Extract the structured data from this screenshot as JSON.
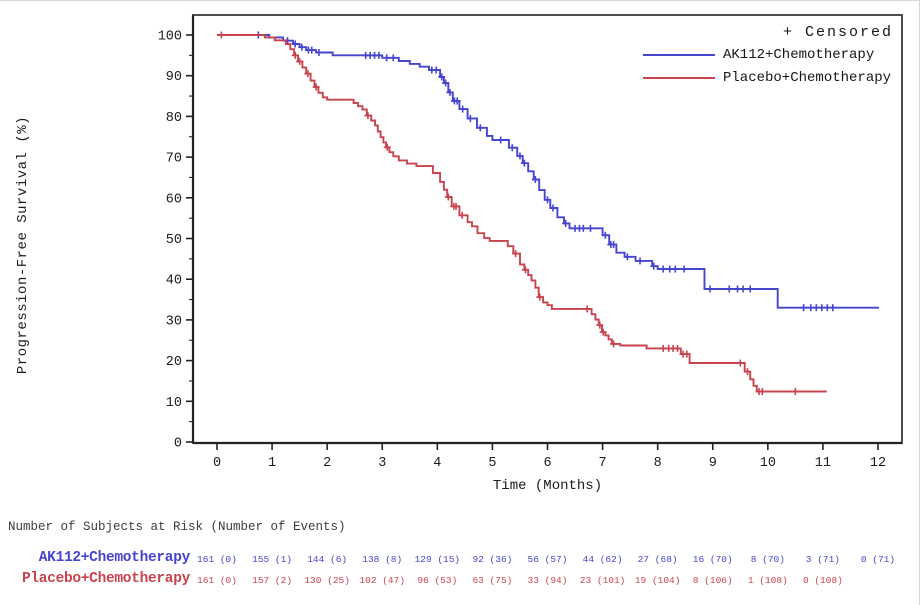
{
  "chart_data": {
    "type": "line",
    "subtype": "kaplan-meier-step",
    "title": "",
    "xlabel": "Time (Months)",
    "ylabel": "Progression-Free Survival (%)",
    "xlim": [
      0,
      12.5
    ],
    "ylim": [
      0,
      100
    ],
    "x_ticks": [
      0,
      1,
      2,
      3,
      4,
      5,
      6,
      7,
      8,
      9,
      10,
      11,
      12
    ],
    "y_ticks": [
      0,
      10,
      20,
      30,
      40,
      50,
      60,
      70,
      80,
      90,
      100
    ],
    "y_minor_ticks": [
      5,
      15,
      25,
      35,
      45,
      55,
      65,
      75,
      85,
      95
    ],
    "grid": false,
    "legend": {
      "position": "top-right",
      "censored_label": "+ Censored"
    },
    "series": [
      {
        "name": "AK112+Chemotherapy",
        "color": "#4545cf",
        "steps": [
          [
            0,
            100
          ],
          [
            0.95,
            99.4
          ],
          [
            1.2,
            98.6
          ],
          [
            1.38,
            97.8
          ],
          [
            1.5,
            97.0
          ],
          [
            1.62,
            96.3
          ],
          [
            1.8,
            95.7
          ],
          [
            2.1,
            95.0
          ],
          [
            3.0,
            94.4
          ],
          [
            3.3,
            93.6
          ],
          [
            3.5,
            92.9
          ],
          [
            3.68,
            92.2
          ],
          [
            3.85,
            91.4
          ],
          [
            4.05,
            89.7
          ],
          [
            4.12,
            88.2
          ],
          [
            4.2,
            85.9
          ],
          [
            4.28,
            83.8
          ],
          [
            4.4,
            81.8
          ],
          [
            4.55,
            79.5
          ],
          [
            4.72,
            77.2
          ],
          [
            4.9,
            75.2
          ],
          [
            5.0,
            74.2
          ],
          [
            5.3,
            72.3
          ],
          [
            5.45,
            70.3
          ],
          [
            5.55,
            68.5
          ],
          [
            5.65,
            66.5
          ],
          [
            5.75,
            64.5
          ],
          [
            5.85,
            61.9
          ],
          [
            5.95,
            59.5
          ],
          [
            6.05,
            57.5
          ],
          [
            6.18,
            55.2
          ],
          [
            6.3,
            53.7
          ],
          [
            6.4,
            52.5
          ],
          [
            7.0,
            50.8
          ],
          [
            7.12,
            48.5
          ],
          [
            7.25,
            46.5
          ],
          [
            7.4,
            45.5
          ],
          [
            7.6,
            44.5
          ],
          [
            7.9,
            43.2
          ],
          [
            8.0,
            42.5
          ],
          [
            8.85,
            37.6
          ],
          [
            10.18,
            33.0
          ],
          [
            12.02,
            33.0
          ]
        ],
        "censors": [
          [
            0.75,
            100
          ],
          [
            1.28,
            98.6
          ],
          [
            1.42,
            97.8
          ],
          [
            1.54,
            97.0
          ],
          [
            1.66,
            96.3
          ],
          [
            1.72,
            96.3
          ],
          [
            1.85,
            95.7
          ],
          [
            2.7,
            95.0
          ],
          [
            2.78,
            95.0
          ],
          [
            2.86,
            95.0
          ],
          [
            2.94,
            95.0
          ],
          [
            3.08,
            94.4
          ],
          [
            3.2,
            94.4
          ],
          [
            3.9,
            91.4
          ],
          [
            3.98,
            91.4
          ],
          [
            4.08,
            89.7
          ],
          [
            4.15,
            88.2
          ],
          [
            4.23,
            85.9
          ],
          [
            4.31,
            83.8
          ],
          [
            4.36,
            83.8
          ],
          [
            4.46,
            81.8
          ],
          [
            4.6,
            79.5
          ],
          [
            4.78,
            77.2
          ],
          [
            5.15,
            74.2
          ],
          [
            5.36,
            72.3
          ],
          [
            5.5,
            70.3
          ],
          [
            5.58,
            68.5
          ],
          [
            5.78,
            64.5
          ],
          [
            6.0,
            59.5
          ],
          [
            6.1,
            57.5
          ],
          [
            6.33,
            53.7
          ],
          [
            6.5,
            52.5
          ],
          [
            6.58,
            52.5
          ],
          [
            6.65,
            52.5
          ],
          [
            6.78,
            52.5
          ],
          [
            7.05,
            50.8
          ],
          [
            7.15,
            48.5
          ],
          [
            7.2,
            48.5
          ],
          [
            7.45,
            45.5
          ],
          [
            7.68,
            44.5
          ],
          [
            7.93,
            43.2
          ],
          [
            8.1,
            42.5
          ],
          [
            8.22,
            42.5
          ],
          [
            8.32,
            42.5
          ],
          [
            8.48,
            42.5
          ],
          [
            8.95,
            37.6
          ],
          [
            9.3,
            37.6
          ],
          [
            9.45,
            37.6
          ],
          [
            9.55,
            37.6
          ],
          [
            9.68,
            37.6
          ],
          [
            10.65,
            33.0
          ],
          [
            10.78,
            33.0
          ],
          [
            10.88,
            33.0
          ],
          [
            10.98,
            33.0
          ],
          [
            11.08,
            33.0
          ],
          [
            11.18,
            33.0
          ]
        ]
      },
      {
        "name": "Placebo+Chemotherapy",
        "color": "#c8434e",
        "steps": [
          [
            0,
            100
          ],
          [
            0.87,
            99.4
          ],
          [
            1.05,
            98.7
          ],
          [
            1.25,
            97.8
          ],
          [
            1.33,
            96.5
          ],
          [
            1.4,
            95.0
          ],
          [
            1.47,
            93.5
          ],
          [
            1.55,
            92.0
          ],
          [
            1.62,
            90.5
          ],
          [
            1.7,
            88.8
          ],
          [
            1.77,
            87.2
          ],
          [
            1.84,
            85.8
          ],
          [
            1.92,
            84.7
          ],
          [
            2.0,
            84.1
          ],
          [
            2.48,
            83.3
          ],
          [
            2.56,
            82.5
          ],
          [
            2.64,
            81.7
          ],
          [
            2.72,
            80.2
          ],
          [
            2.8,
            79.0
          ],
          [
            2.87,
            77.8
          ],
          [
            2.92,
            76.3
          ],
          [
            2.97,
            74.9
          ],
          [
            3.02,
            73.6
          ],
          [
            3.07,
            72.4
          ],
          [
            3.13,
            71.2
          ],
          [
            3.2,
            70.2
          ],
          [
            3.3,
            69.2
          ],
          [
            3.45,
            68.4
          ],
          [
            3.62,
            67.8
          ],
          [
            3.92,
            66.1
          ],
          [
            4.05,
            63.9
          ],
          [
            4.12,
            62.0
          ],
          [
            4.18,
            60.2
          ],
          [
            4.26,
            57.9
          ],
          [
            4.4,
            55.7
          ],
          [
            4.55,
            54.0
          ],
          [
            4.63,
            53.0
          ],
          [
            4.73,
            51.3
          ],
          [
            4.85,
            50.1
          ],
          [
            4.95,
            49.4
          ],
          [
            5.28,
            48.1
          ],
          [
            5.38,
            46.3
          ],
          [
            5.5,
            43.6
          ],
          [
            5.58,
            42.3
          ],
          [
            5.65,
            41.0
          ],
          [
            5.71,
            39.7
          ],
          [
            5.78,
            37.9
          ],
          [
            5.84,
            35.6
          ],
          [
            5.92,
            34.3
          ],
          [
            6.0,
            33.6
          ],
          [
            6.08,
            32.7
          ],
          [
            6.8,
            31.4
          ],
          [
            6.87,
            30.1
          ],
          [
            6.93,
            28.7
          ],
          [
            6.99,
            27.0
          ],
          [
            7.05,
            26.2
          ],
          [
            7.11,
            25.2
          ],
          [
            7.17,
            24.1
          ],
          [
            7.32,
            23.7
          ],
          [
            7.8,
            23.0
          ],
          [
            8.42,
            21.6
          ],
          [
            8.58,
            19.4
          ],
          [
            9.58,
            17.3
          ],
          [
            9.68,
            15.4
          ],
          [
            9.74,
            13.8
          ],
          [
            9.8,
            12.4
          ],
          [
            11.07,
            12.4
          ]
        ],
        "censors": [
          [
            0.08,
            100
          ],
          [
            1.42,
            95.0
          ],
          [
            1.5,
            93.5
          ],
          [
            1.65,
            90.5
          ],
          [
            1.8,
            87.2
          ],
          [
            2.74,
            80.2
          ],
          [
            3.09,
            72.4
          ],
          [
            4.2,
            60.2
          ],
          [
            4.3,
            57.9
          ],
          [
            4.34,
            57.9
          ],
          [
            4.45,
            55.7
          ],
          [
            5.42,
            46.3
          ],
          [
            5.6,
            42.3
          ],
          [
            5.86,
            35.6
          ],
          [
            6.72,
            32.7
          ],
          [
            6.95,
            28.7
          ],
          [
            7.01,
            27.0
          ],
          [
            7.2,
            24.1
          ],
          [
            8.1,
            23.0
          ],
          [
            8.2,
            23.0
          ],
          [
            8.28,
            23.0
          ],
          [
            8.36,
            23.0
          ],
          [
            8.46,
            21.6
          ],
          [
            8.53,
            21.6
          ],
          [
            9.5,
            19.4
          ],
          [
            9.63,
            17.3
          ],
          [
            9.84,
            12.4
          ],
          [
            9.9,
            12.4
          ],
          [
            10.5,
            12.4
          ]
        ]
      }
    ]
  },
  "risk_table": {
    "header": "Number of Subjects at Risk (Number of Events)",
    "rows": [
      {
        "label": "AK112+Chemotherapy",
        "color": "#4545cf",
        "values": [
          "161 (0)",
          "155 (1)",
          "144 (6)",
          "138 (8)",
          "129 (15)",
          "92 (36)",
          "56 (57)",
          "44 (62)",
          "27 (68)",
          "16 (70)",
          "8 (70)",
          "3 (71)",
          "0 (71)"
        ]
      },
      {
        "label": "Placebo+Chemotherapy",
        "color": "#c8434e",
        "values": [
          "161 (0)",
          "157 (2)",
          "130 (25)",
          "102 (47)",
          "96 (53)",
          "63 (75)",
          "33 (94)",
          "23 (101)",
          "19 (104)",
          "8 (106)",
          "1 (108)",
          "0 (108)"
        ]
      }
    ]
  }
}
